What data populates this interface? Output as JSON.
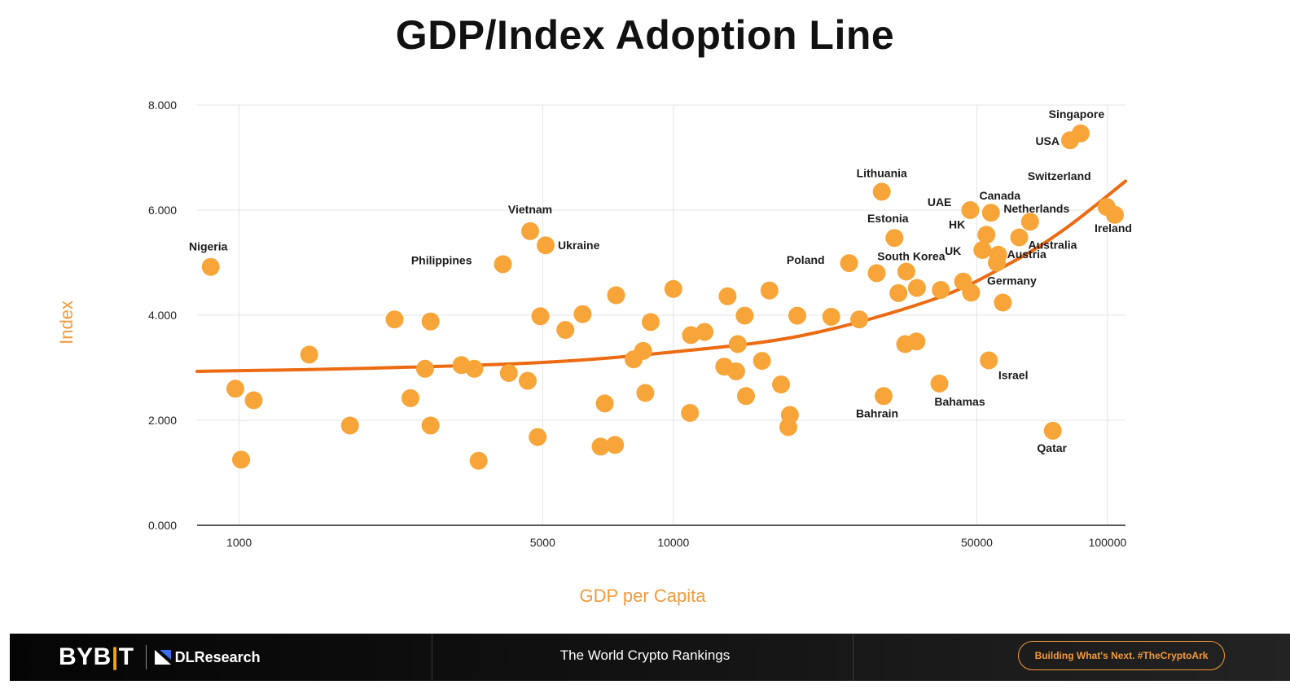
{
  "title": "GDP/Index Adoption Line",
  "chart_data": {
    "type": "scatter",
    "title": "GDP/Index Adoption Line",
    "xlabel": "GDP per Capita",
    "ylabel": "Index",
    "x_scale": "log",
    "xlim": [
      800,
      110000
    ],
    "ylim": [
      0,
      8000
    ],
    "x_ticks": [
      1000,
      5000,
      10000,
      50000,
      100000
    ],
    "x_tick_labels": [
      "1000",
      "5000",
      "10000",
      "50000",
      "100000"
    ],
    "y_ticks": [
      0,
      2000,
      4000,
      6000,
      8000
    ],
    "y_tick_labels": [
      "0.000",
      "2.000",
      "4.000",
      "6.000",
      "8.000"
    ],
    "grid": true,
    "colors": {
      "points": "#F7A539",
      "trend": "#EC6A12",
      "axis_title": "#F39A3A",
      "grid": "#E4E4E4"
    },
    "trendline": {
      "name": "Adoption line",
      "x": [
        800,
        2000,
        5000,
        10000,
        20000,
        40000,
        60000,
        80000,
        110000
      ],
      "y": [
        2930,
        2990,
        3100,
        3300,
        3620,
        4310,
        5000,
        5650,
        6550
      ]
    },
    "points": [
      {
        "label": "Nigeria",
        "x": 860,
        "y": 4920
      },
      {
        "label": "",
        "x": 980,
        "y": 2600
      },
      {
        "label": "",
        "x": 1010,
        "y": 1250
      },
      {
        "label": "",
        "x": 1080,
        "y": 2380
      },
      {
        "label": "",
        "x": 1450,
        "y": 3250
      },
      {
        "label": "",
        "x": 1800,
        "y": 1900
      },
      {
        "label": "",
        "x": 2280,
        "y": 3920
      },
      {
        "label": "",
        "x": 2480,
        "y": 2420
      },
      {
        "label": "",
        "x": 2680,
        "y": 2980
      },
      {
        "label": "",
        "x": 2760,
        "y": 3880
      },
      {
        "label": "",
        "x": 2760,
        "y": 1900
      },
      {
        "label": "",
        "x": 3250,
        "y": 3050
      },
      {
        "label": "",
        "x": 3480,
        "y": 2980
      },
      {
        "label": "",
        "x": 3560,
        "y": 1230
      },
      {
        "label": "Philippines",
        "x": 4050,
        "y": 4970
      },
      {
        "label": "",
        "x": 4180,
        "y": 2900
      },
      {
        "label": "",
        "x": 4620,
        "y": 2750
      },
      {
        "label": "Vietnam",
        "x": 4680,
        "y": 5600
      },
      {
        "label": "",
        "x": 4870,
        "y": 1680
      },
      {
        "label": "",
        "x": 4940,
        "y": 3980
      },
      {
        "label": "Ukraine",
        "x": 5080,
        "y": 5330
      },
      {
        "label": "",
        "x": 5640,
        "y": 3720
      },
      {
        "label": "",
        "x": 6180,
        "y": 4020
      },
      {
        "label": "",
        "x": 6800,
        "y": 1500
      },
      {
        "label": "",
        "x": 6950,
        "y": 2320
      },
      {
        "label": "",
        "x": 7340,
        "y": 1530
      },
      {
        "label": "",
        "x": 7380,
        "y": 4380
      },
      {
        "label": "",
        "x": 8100,
        "y": 3160
      },
      {
        "label": "",
        "x": 8520,
        "y": 3320
      },
      {
        "label": "",
        "x": 8620,
        "y": 2520
      },
      {
        "label": "",
        "x": 8870,
        "y": 3870
      },
      {
        "label": "",
        "x": 10000,
        "y": 4500
      },
      {
        "label": "",
        "x": 10920,
        "y": 2140
      },
      {
        "label": "",
        "x": 10980,
        "y": 3620
      },
      {
        "label": "",
        "x": 11800,
        "y": 3680
      },
      {
        "label": "",
        "x": 13100,
        "y": 3020
      },
      {
        "label": "",
        "x": 13330,
        "y": 4360
      },
      {
        "label": "",
        "x": 13950,
        "y": 2930
      },
      {
        "label": "",
        "x": 14070,
        "y": 3450
      },
      {
        "label": "",
        "x": 14600,
        "y": 3990
      },
      {
        "label": "",
        "x": 14700,
        "y": 2460
      },
      {
        "label": "",
        "x": 16000,
        "y": 3130
      },
      {
        "label": "",
        "x": 16650,
        "y": 4470
      },
      {
        "label": "",
        "x": 17700,
        "y": 2680
      },
      {
        "label": "",
        "x": 18400,
        "y": 1870
      },
      {
        "label": "",
        "x": 18550,
        "y": 2100
      },
      {
        "label": "",
        "x": 19300,
        "y": 3990
      },
      {
        "label": "",
        "x": 23100,
        "y": 3970
      },
      {
        "label": "Poland",
        "x": 25400,
        "y": 4990
      },
      {
        "label": "",
        "x": 26800,
        "y": 3920
      },
      {
        "label": "Lithuania",
        "x": 30200,
        "y": 6350
      },
      {
        "label": "",
        "x": 29400,
        "y": 4800
      },
      {
        "label": "Bahrain",
        "x": 30500,
        "y": 2460
      },
      {
        "label": "Estonia",
        "x": 32300,
        "y": 5470
      },
      {
        "label": "",
        "x": 33000,
        "y": 4420
      },
      {
        "label": "",
        "x": 34200,
        "y": 3450
      },
      {
        "label": "South Korea",
        "x": 34400,
        "y": 4830
      },
      {
        "label": "",
        "x": 36300,
        "y": 3500
      },
      {
        "label": "",
        "x": 36400,
        "y": 4520
      },
      {
        "label": "Bahamas",
        "x": 41000,
        "y": 2700
      },
      {
        "label": "",
        "x": 41300,
        "y": 4480
      },
      {
        "label": "",
        "x": 46500,
        "y": 4640
      },
      {
        "label": "UAE",
        "x": 48300,
        "y": 6000
      },
      {
        "label": "",
        "x": 48500,
        "y": 4430
      },
      {
        "label": "UK",
        "x": 51500,
        "y": 5240
      },
      {
        "label": "HK",
        "x": 52600,
        "y": 5530
      },
      {
        "label": "Israel",
        "x": 53300,
        "y": 3140
      },
      {
        "label": "Canada",
        "x": 53900,
        "y": 5950
      },
      {
        "label": "",
        "x": 55600,
        "y": 5000
      },
      {
        "label": "Austria",
        "x": 56000,
        "y": 5150
      },
      {
        "label": "Germany",
        "x": 57400,
        "y": 4240
      },
      {
        "label": "Australia",
        "x": 62600,
        "y": 5480
      },
      {
        "label": "Netherlands",
        "x": 66300,
        "y": 5780
      },
      {
        "label": "Qatar",
        "x": 74800,
        "y": 1800
      },
      {
        "label": "USA",
        "x": 82000,
        "y": 7330
      },
      {
        "label": "Singapore",
        "x": 86700,
        "y": 7460
      },
      {
        "label": "Switzerland",
        "x": 99500,
        "y": 6060
      },
      {
        "label": "Ireland",
        "x": 104000,
        "y": 5910
      }
    ]
  },
  "footer": {
    "brand": "BYBIT",
    "partner": "DLResearch",
    "center_text": "The World Crypto Rankings",
    "tagline": "Building What's Next. #TheCryptoArk"
  }
}
